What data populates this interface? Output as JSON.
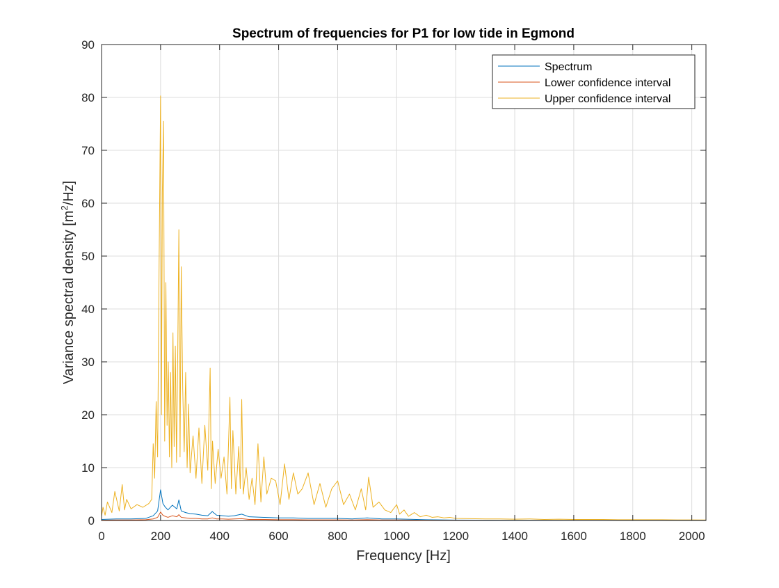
{
  "chart_data": {
    "type": "line",
    "title": "Spectrum of frequencies for P1 for low tide in Egmond",
    "xlabel": "Frequency [Hz]",
    "ylabel_main": "Variance spectral density [m",
    "ylabel_sup": "2",
    "ylabel_tail": "/Hz]",
    "xlim": [
      0,
      2048
    ],
    "ylim": [
      0,
      90
    ],
    "xticks": [
      0,
      200,
      400,
      600,
      800,
      1000,
      1200,
      1400,
      1600,
      1800,
      2000
    ],
    "yticks": [
      0,
      10,
      20,
      30,
      40,
      50,
      60,
      70,
      80,
      90
    ],
    "grid": true,
    "legend_position": "top-right",
    "series": [
      {
        "name": "Spectrum",
        "color": "#0072BD",
        "x": [
          0,
          50,
          100,
          150,
          175,
          190,
          200,
          208,
          215,
          225,
          240,
          255,
          262,
          270,
          285,
          300,
          320,
          340,
          360,
          375,
          390,
          410,
          430,
          450,
          475,
          500,
          550,
          600,
          650,
          700,
          750,
          800,
          850,
          900,
          950,
          1000,
          1100,
          1200,
          1400,
          1600,
          1800,
          2048
        ],
        "y": [
          0.2,
          0.3,
          0.3,
          0.4,
          0.9,
          1.8,
          5.8,
          3.2,
          2.6,
          2.0,
          2.9,
          2.2,
          3.9,
          1.8,
          1.5,
          1.3,
          1.2,
          1.0,
          0.9,
          1.7,
          1.0,
          0.9,
          0.8,
          0.9,
          1.2,
          0.7,
          0.6,
          0.5,
          0.5,
          0.4,
          0.4,
          0.4,
          0.3,
          0.5,
          0.3,
          0.3,
          0.15,
          0.08,
          0.05,
          0.04,
          0.03,
          0.03
        ]
      },
      {
        "name": "Lower confidence interval",
        "color": "#D95319",
        "x": [
          0,
          50,
          100,
          150,
          175,
          190,
          200,
          208,
          215,
          225,
          240,
          255,
          262,
          270,
          285,
          300,
          320,
          340,
          360,
          375,
          390,
          410,
          430,
          450,
          475,
          500,
          550,
          600,
          650,
          700,
          750,
          800,
          850,
          900,
          950,
          1000,
          1100,
          1200,
          1400,
          1600,
          1800,
          2048
        ],
        "y": [
          0.05,
          0.1,
          0.1,
          0.15,
          0.3,
          0.6,
          1.6,
          1.0,
          0.8,
          0.6,
          0.9,
          0.7,
          1.1,
          0.6,
          0.5,
          0.4,
          0.4,
          0.3,
          0.3,
          0.5,
          0.3,
          0.3,
          0.25,
          0.3,
          0.35,
          0.2,
          0.2,
          0.15,
          0.15,
          0.12,
          0.12,
          0.12,
          0.1,
          0.15,
          0.1,
          0.1,
          0.05,
          0.03,
          0.02,
          0.01,
          0.01,
          0.01
        ]
      },
      {
        "name": "Upper confidence interval",
        "color": "#EDB120",
        "x": [
          0,
          5,
          12,
          20,
          35,
          45,
          60,
          70,
          78,
          85,
          100,
          120,
          140,
          160,
          170,
          175,
          180,
          185,
          190,
          195,
          200,
          203,
          206,
          210,
          214,
          218,
          222,
          226,
          230,
          234,
          238,
          242,
          246,
          250,
          254,
          258,
          262,
          266,
          270,
          275,
          280,
          285,
          290,
          295,
          300,
          310,
          320,
          330,
          340,
          350,
          360,
          368,
          372,
          376,
          385,
          395,
          405,
          415,
          425,
          435,
          440,
          445,
          455,
          465,
          470,
          475,
          480,
          490,
          500,
          510,
          520,
          530,
          540,
          550,
          560,
          575,
          590,
          605,
          620,
          635,
          650,
          665,
          680,
          700,
          720,
          740,
          760,
          780,
          800,
          820,
          840,
          860,
          880,
          895,
          905,
          920,
          940,
          960,
          980,
          1000,
          1010,
          1025,
          1040,
          1060,
          1080,
          1100,
          1120,
          1140,
          1160,
          1180,
          1200,
          1250,
          1300,
          1350,
          1400,
          1450,
          1500,
          1550,
          1600,
          1650,
          1700,
          1750,
          1800,
          1850,
          1900,
          1950,
          2000,
          2048
        ],
        "y": [
          0.8,
          2.5,
          1.0,
          3.5,
          1.5,
          5.5,
          1.8,
          6.8,
          2.0,
          4.0,
          2.2,
          3.0,
          2.5,
          3.2,
          4.0,
          14.5,
          8.0,
          22.5,
          12.0,
          48.0,
          80.3,
          20.0,
          62.0,
          75.5,
          15.0,
          45.0,
          18.0,
          30.0,
          12.0,
          28.0,
          10.0,
          35.5,
          14.0,
          33.0,
          11.0,
          30.5,
          55.0,
          12.0,
          48.0,
          25.0,
          13.0,
          28.0,
          10.0,
          22.0,
          9.0,
          16.0,
          8.0,
          17.5,
          7.0,
          18.0,
          9.5,
          28.8,
          6.0,
          15.0,
          7.0,
          13.5,
          8.0,
          12.0,
          5.0,
          23.3,
          6.0,
          17.0,
          5.0,
          14.0,
          6.0,
          22.9,
          5.0,
          10.0,
          4.0,
          8.0,
          3.0,
          14.5,
          3.5,
          12.0,
          5.0,
          8.0,
          7.5,
          3.0,
          10.7,
          4.0,
          9.0,
          5.0,
          6.0,
          9.0,
          3.0,
          7.0,
          2.5,
          6.0,
          7.5,
          3.0,
          5.0,
          2.0,
          6.0,
          2.0,
          8.2,
          2.5,
          3.5,
          2.0,
          1.5,
          3.0,
          1.2,
          2.0,
          0.8,
          1.5,
          0.7,
          1.0,
          0.6,
          0.7,
          0.5,
          0.6,
          0.4,
          0.35,
          0.3,
          0.3,
          0.25,
          0.3,
          0.2,
          0.25,
          0.2,
          0.2,
          0.2,
          0.15,
          0.15,
          0.15,
          0.15,
          0.12,
          0.12,
          0.1
        ]
      }
    ]
  }
}
